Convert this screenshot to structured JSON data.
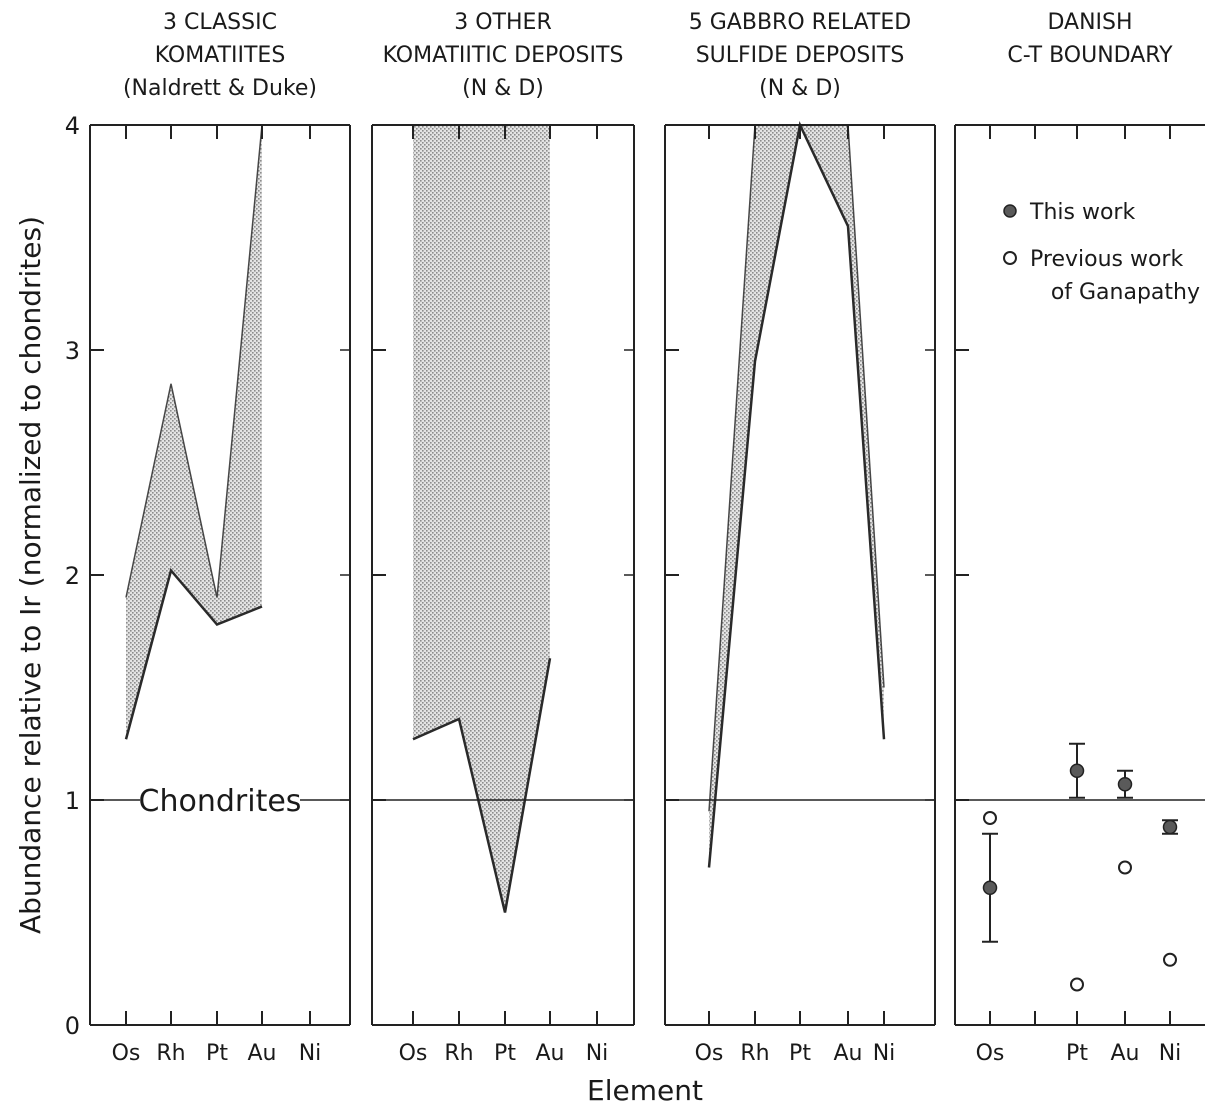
{
  "chart_data": {
    "type": "area",
    "ylabel": "Abundance relative to Ir (normalized to chondrites)",
    "xlabel": "Element",
    "ylim": [
      0,
      4
    ],
    "yticks": [
      "0",
      "1",
      "2",
      "3",
      "4"
    ],
    "reference_line": {
      "y": 1,
      "label": "Chondrites"
    },
    "legend": {
      "placement": "top-right of last panel",
      "entries": [
        {
          "marker": "filled-circle",
          "label": "This work"
        },
        {
          "marker": "open-circle",
          "label": "Previous work",
          "label2": "of Ganapathy"
        }
      ]
    },
    "panels": [
      {
        "title": [
          "3 CLASSIC",
          "KOMATIITES",
          "(Naldrett & Duke)"
        ],
        "type": "band",
        "categories": [
          "Os",
          "Rh",
          "Pt",
          "Au",
          "Ni"
        ],
        "upper": [
          1.9,
          2.85,
          1.9,
          4.0,
          null
        ],
        "lower": [
          1.27,
          2.02,
          1.78,
          1.86,
          null
        ]
      },
      {
        "title": [
          "3 OTHER",
          "KOMATIITIC DEPOSITS",
          "(N & D)"
        ],
        "type": "band",
        "categories": [
          "Os",
          "Rh",
          "Pt",
          "Au",
          "Ni"
        ],
        "upper": [
          4.0,
          4.0,
          4.0,
          4.0,
          null
        ],
        "lower": [
          1.27,
          1.36,
          0.5,
          1.63,
          null
        ]
      },
      {
        "title": [
          "5 GABBRO RELATED",
          "SULFIDE DEPOSITS",
          "(N & D)"
        ],
        "type": "band",
        "categories": [
          "Os",
          "Rh",
          "Pt",
          "Au",
          "Ni"
        ],
        "upper": [
          0.95,
          4.0,
          4.0,
          4.0,
          1.5
        ],
        "lower": [
          0.7,
          2.95,
          4.0,
          3.55,
          1.27
        ]
      },
      {
        "title": [
          "DANISH",
          "C-T BOUNDARY"
        ],
        "type": "scatter",
        "categories": [
          "Os",
          "",
          "Pt",
          "Au",
          "Ni"
        ],
        "series": [
          {
            "name": "This work",
            "marker": "filled",
            "points": [
              {
                "x": "Os",
                "y": 0.61,
                "err_low": 0.37,
                "err_high": 0.85
              },
              {
                "x": "Pt",
                "y": 1.13,
                "err_low": 1.01,
                "err_high": 1.25
              },
              {
                "x": "Au",
                "y": 1.07,
                "err_low": 1.01,
                "err_high": 1.13
              },
              {
                "x": "Ni",
                "y": 0.88,
                "err_low": 0.85,
                "err_high": 0.91
              }
            ]
          },
          {
            "name": "Previous work of Ganapathy",
            "marker": "open",
            "points": [
              {
                "x": "Os",
                "y": 0.92
              },
              {
                "x": "Pt",
                "y": 0.18
              },
              {
                "x": "Au",
                "y": 0.7
              },
              {
                "x": "Ni",
                "y": 0.29
              }
            ]
          }
        ]
      }
    ]
  }
}
